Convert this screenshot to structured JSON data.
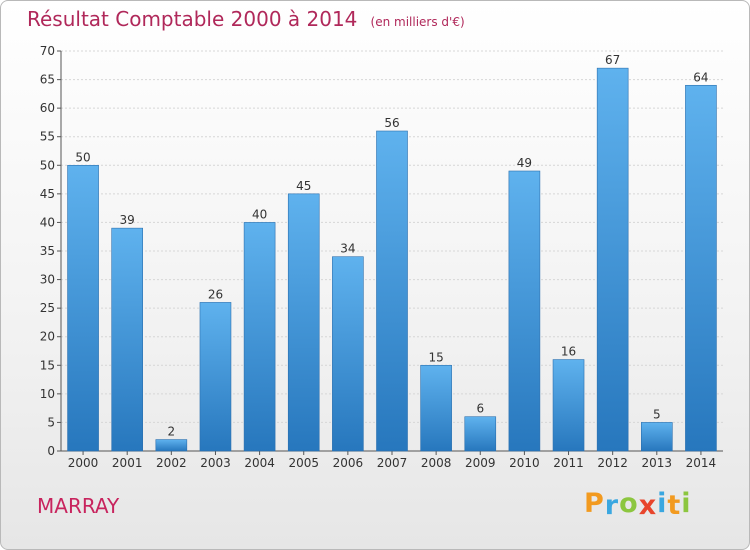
{
  "chart_data": {
    "type": "bar",
    "title": "Résultat Comptable 2000 à 2014",
    "subtitle": "(en milliers d'€)",
    "categories": [
      "2000",
      "2001",
      "2002",
      "2003",
      "2004",
      "2005",
      "2006",
      "2007",
      "2008",
      "2009",
      "2010",
      "2011",
      "2012",
      "2013",
      "2014"
    ],
    "values": [
      50,
      39,
      2,
      26,
      40,
      45,
      34,
      56,
      15,
      6,
      49,
      16,
      67,
      5,
      64
    ],
    "ylim": [
      0,
      70
    ],
    "yticks": [
      0,
      5,
      10,
      15,
      20,
      25,
      30,
      35,
      40,
      45,
      50,
      55,
      60,
      65,
      70
    ],
    "xlabel": "",
    "ylabel": "",
    "grid": true,
    "bar_color": "#3a8fd6"
  },
  "commune": "MARRAY",
  "logo": {
    "letters": [
      {
        "char": "P",
        "color": "#f29a1f"
      },
      {
        "char": "r",
        "color": "#3aa7e0"
      },
      {
        "char": "o",
        "color": "#8cc63f"
      },
      {
        "char": "x",
        "color": "#e8452c"
      },
      {
        "char": "i",
        "color": "#3aa7e0"
      },
      {
        "char": "t",
        "color": "#f29a1f"
      },
      {
        "char": "i",
        "color": "#8cc63f"
      }
    ]
  }
}
